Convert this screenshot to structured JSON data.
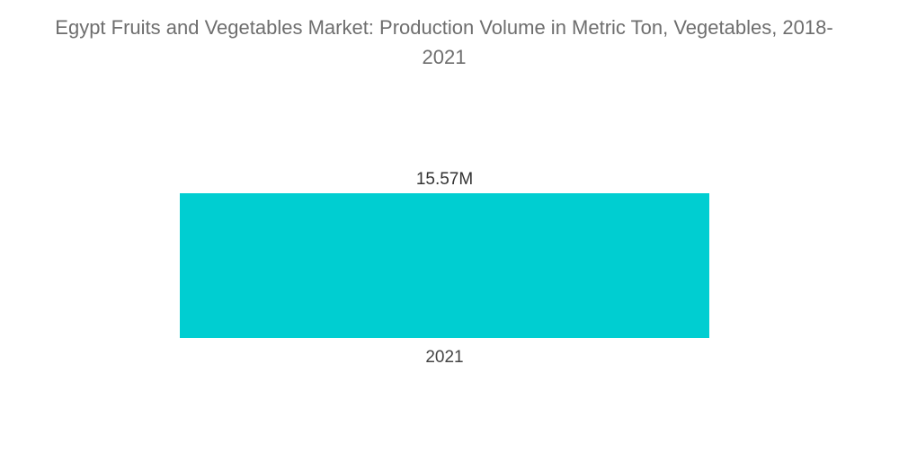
{
  "chart_data": {
    "type": "bar",
    "title": "Egypt Fruits and Vegetables Market: Production Volume in Metric Ton, Vegetables, 2018-2021",
    "categories": [
      "2021"
    ],
    "values": [
      15.57
    ],
    "value_labels": [
      "15.57M"
    ],
    "xlabel": "",
    "ylabel": "",
    "grid": false,
    "legend": "none",
    "bar_color": "#00CED1"
  }
}
